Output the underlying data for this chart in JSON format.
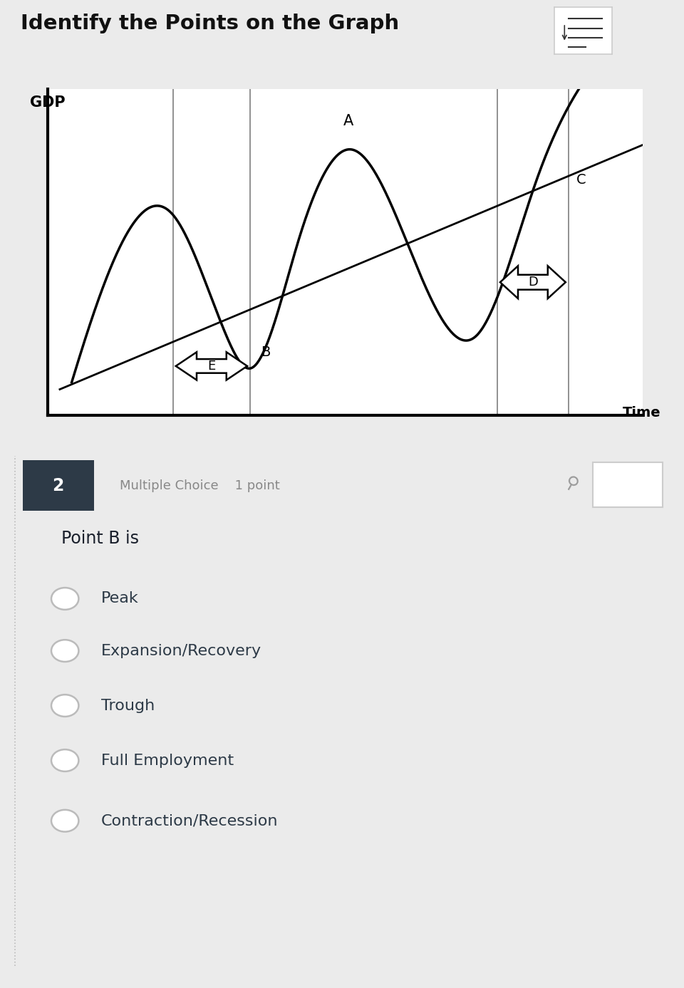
{
  "title": "Identify the Points on the Graph",
  "ylabel": "GDP",
  "xlabel": "Time",
  "bg_color_top": "#ebebeb",
  "bg_color_chart": "#ffffff",
  "bg_color_bottom": "#ffffff",
  "question_number": "2",
  "question_type": "Multiple Choice    1 point",
  "question_text": "Point B is",
  "choices": [
    "Peak",
    "Expansion/Recovery",
    "Trough",
    "Full Employment",
    "Contraction/Recession"
  ],
  "dark_header_color": "#2d3a47",
  "choice_text_color": "#2d3a47",
  "radio_color": "#bbbbbb",
  "wave_color": "#000000",
  "trend_color": "#000000",
  "vline_color": "#888888",
  "chart_spine_color": "#000000"
}
